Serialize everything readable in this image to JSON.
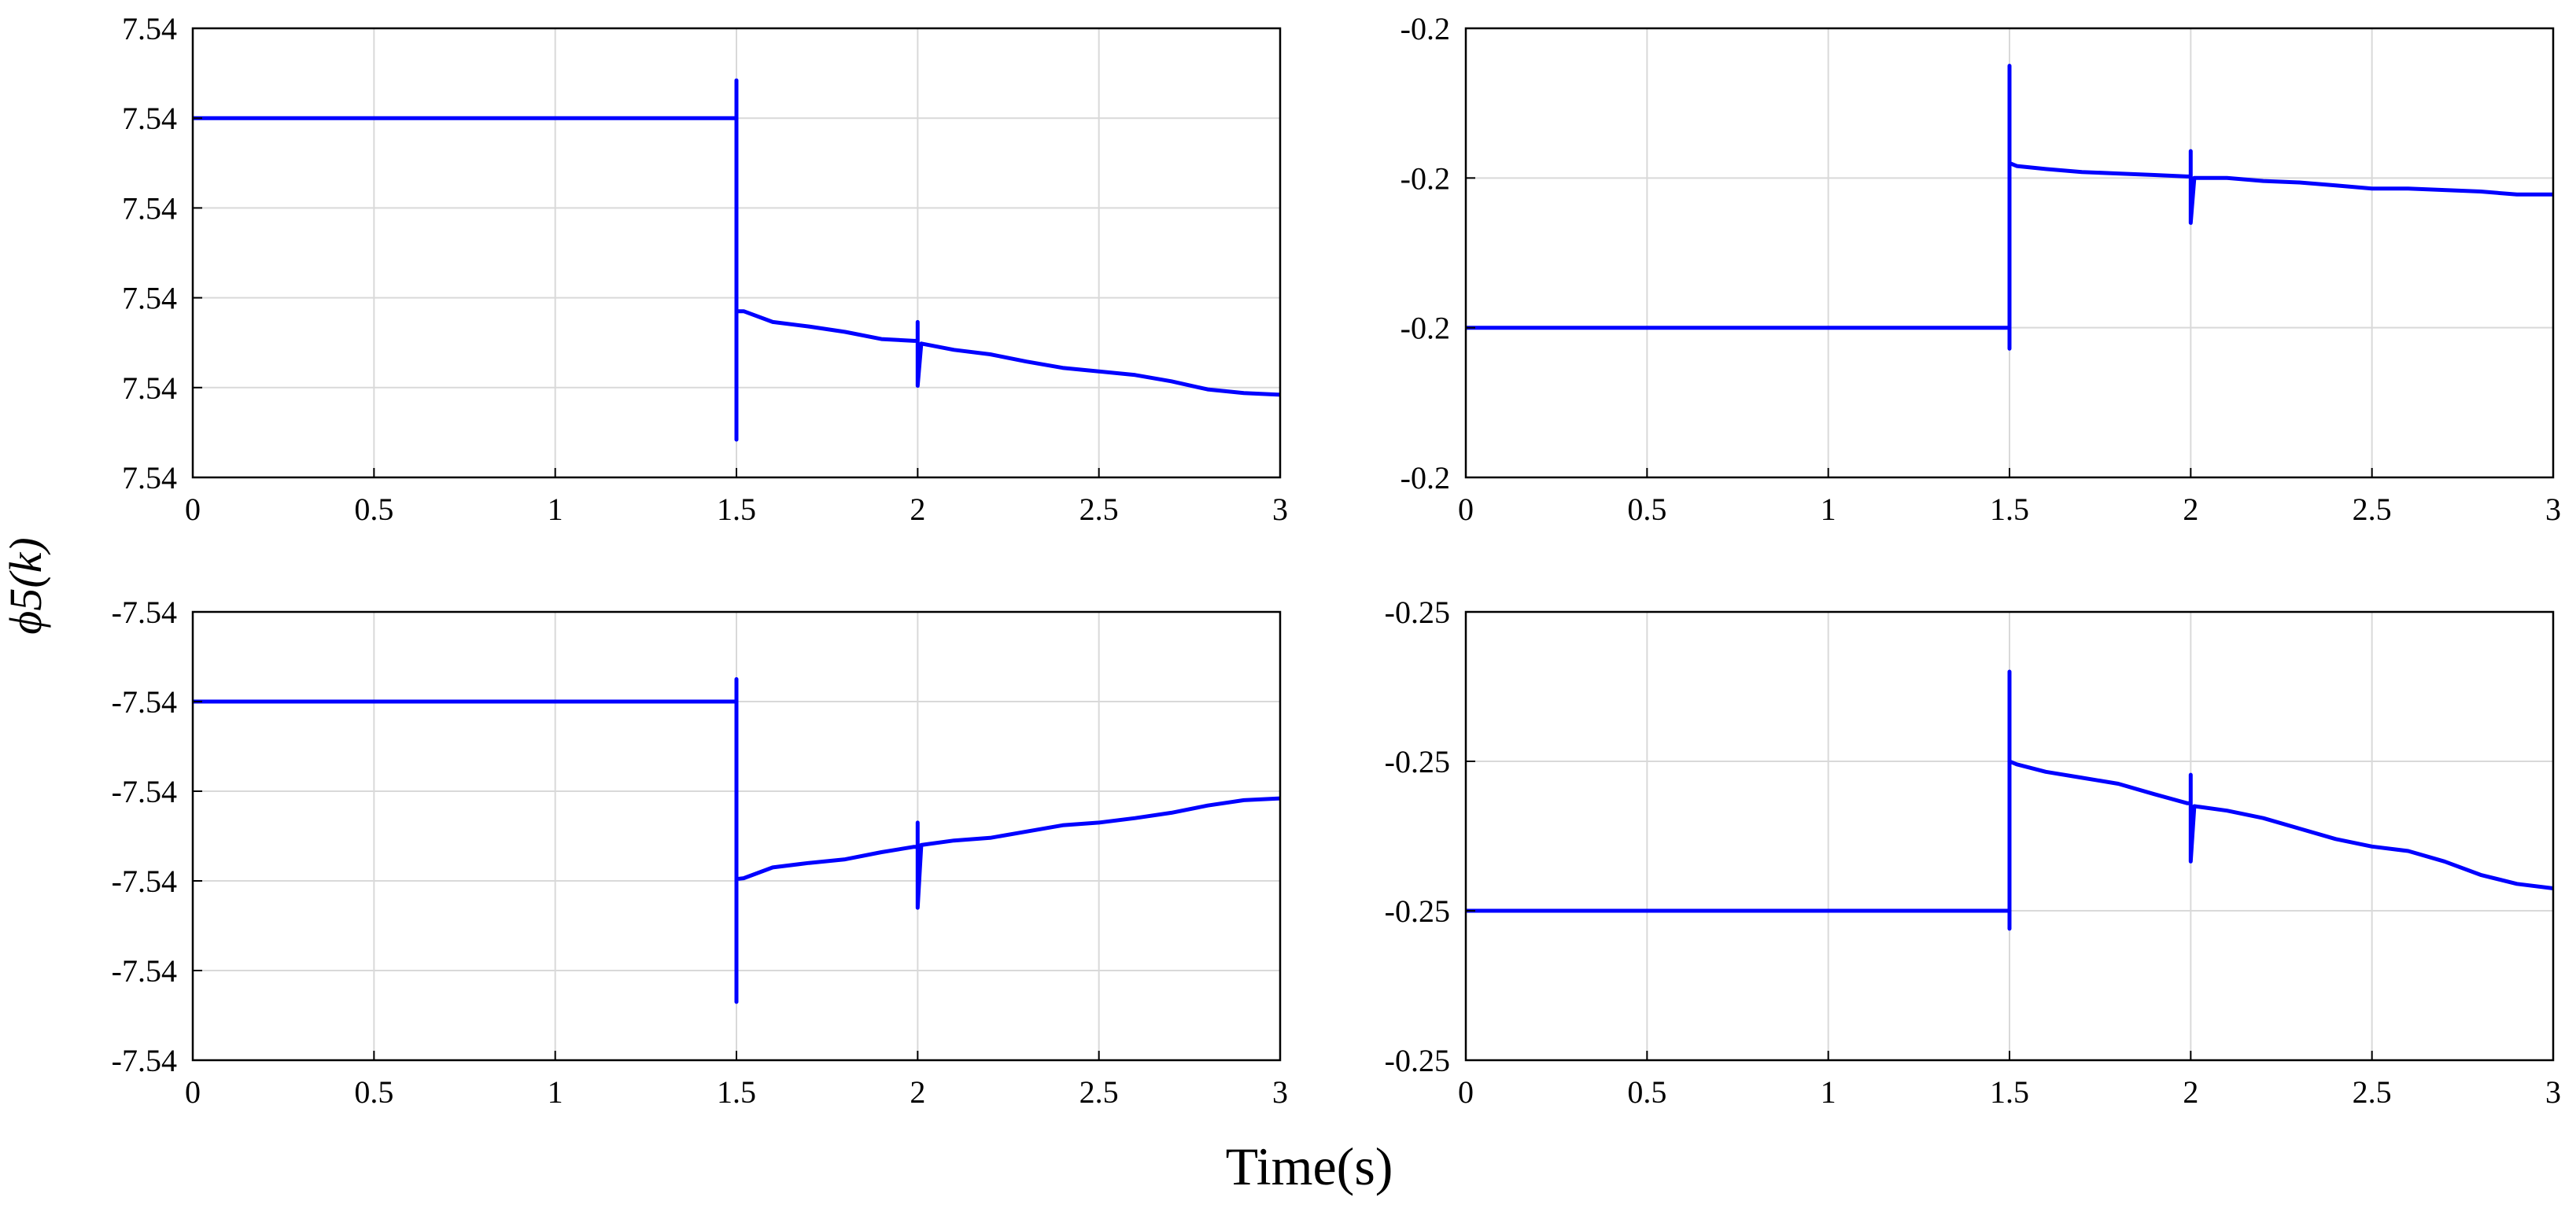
{
  "figure": {
    "shared_xlabel": "Time(s)",
    "shared_ylabel": "ϕ5(k)",
    "colors": {
      "line": "#0000ff",
      "grid": "#d9d9d9",
      "axes": "#000000",
      "background": "#ffffff"
    }
  },
  "chart_data": [
    {
      "type": "line",
      "xlim": [
        0,
        3
      ],
      "ylim": [
        0,
        5
      ],
      "x_ticks": [
        0,
        0.5,
        1,
        1.5,
        2,
        2.5,
        3
      ],
      "x_tick_labels": [
        "0",
        "0.5",
        "1",
        "1.5",
        "2",
        "2.5",
        "3"
      ],
      "y_ticks": [
        0,
        1,
        2,
        3,
        4,
        5
      ],
      "y_tick_labels": [
        "7.54",
        "7.54",
        "7.54",
        "7.54",
        "7.54",
        "7.54"
      ],
      "grid": true,
      "series": [
        {
          "x": [
            0,
            1.495,
            1.5,
            1.5,
            1.5,
            1.5,
            1.52,
            1.6,
            1.7,
            1.8,
            1.9,
            1.99,
            2.0,
            2.0,
            2.0,
            2.01,
            2.1,
            2.2,
            2.3,
            2.4,
            2.5,
            2.6,
            2.7,
            2.8,
            2.9,
            3.0
          ],
          "y": [
            4.0,
            4.0,
            4.0,
            4.42,
            0.42,
            1.85,
            1.85,
            1.73,
            1.68,
            1.62,
            1.54,
            1.52,
            1.52,
            1.73,
            1.02,
            1.49,
            1.42,
            1.37,
            1.29,
            1.22,
            1.18,
            1.14,
            1.07,
            0.98,
            0.94,
            0.92
          ]
        }
      ]
    },
    {
      "type": "line",
      "xlim": [
        0,
        3
      ],
      "ylim": [
        0,
        3
      ],
      "x_ticks": [
        0,
        0.5,
        1,
        1.5,
        2,
        2.5,
        3
      ],
      "x_tick_labels": [
        "0",
        "0.5",
        "1",
        "1.5",
        "2",
        "2.5",
        "3"
      ],
      "y_ticks": [
        0,
        1,
        2,
        3
      ],
      "y_tick_labels": [
        "-0.2",
        "-0.2",
        "-0.2",
        "-0.2"
      ],
      "grid": true,
      "series": [
        {
          "x": [
            0,
            1.495,
            1.5,
            1.5,
            1.5,
            1.5,
            1.52,
            1.6,
            1.7,
            1.8,
            1.9,
            1.99,
            2.0,
            2.0,
            2.0,
            2.01,
            2.1,
            2.2,
            2.3,
            2.4,
            2.5,
            2.6,
            2.7,
            2.8,
            2.9,
            3.0
          ],
          "y": [
            1.0,
            1.0,
            1.0,
            0.86,
            2.75,
            2.1,
            2.08,
            2.06,
            2.04,
            2.03,
            2.02,
            2.01,
            2.01,
            2.18,
            1.7,
            2.0,
            2.0,
            1.98,
            1.97,
            1.95,
            1.93,
            1.93,
            1.92,
            1.91,
            1.89,
            1.89
          ]
        }
      ]
    },
    {
      "type": "line",
      "xlim": [
        0,
        3
      ],
      "ylim": [
        0,
        5
      ],
      "x_ticks": [
        0,
        0.5,
        1,
        1.5,
        2,
        2.5,
        3
      ],
      "x_tick_labels": [
        "0",
        "0.5",
        "1",
        "1.5",
        "2",
        "2.5",
        "3"
      ],
      "y_ticks": [
        0,
        1,
        2,
        3,
        4,
        5
      ],
      "y_tick_labels": [
        "-7.54",
        "-7.54",
        "-7.54",
        "-7.54",
        "-7.54",
        "-7.54"
      ],
      "grid": true,
      "series": [
        {
          "x": [
            0,
            1.495,
            1.5,
            1.5,
            1.5,
            1.5,
            1.52,
            1.6,
            1.7,
            1.8,
            1.9,
            1.99,
            2.0,
            2.0,
            2.0,
            2.01,
            2.1,
            2.2,
            2.3,
            2.4,
            2.5,
            2.6,
            2.7,
            2.8,
            2.9,
            3.0
          ],
          "y": [
            4.0,
            4.0,
            4.0,
            4.25,
            0.65,
            2.02,
            2.03,
            2.15,
            2.2,
            2.24,
            2.32,
            2.38,
            2.38,
            2.65,
            1.7,
            2.4,
            2.45,
            2.48,
            2.55,
            2.62,
            2.65,
            2.7,
            2.76,
            2.84,
            2.9,
            2.92
          ]
        }
      ]
    },
    {
      "type": "line",
      "xlim": [
        0,
        3
      ],
      "ylim": [
        0,
        3
      ],
      "x_ticks": [
        0,
        0.5,
        1,
        1.5,
        2,
        2.5,
        3
      ],
      "x_tick_labels": [
        "0",
        "0.5",
        "1",
        "1.5",
        "2",
        "2.5",
        "3"
      ],
      "y_ticks": [
        0,
        1,
        2,
        3
      ],
      "y_tick_labels": [
        "-0.25",
        "-0.25",
        "-0.25",
        "-0.25"
      ],
      "grid": true,
      "series": [
        {
          "x": [
            0,
            1.495,
            1.5,
            1.5,
            1.5,
            1.5,
            1.52,
            1.6,
            1.7,
            1.8,
            1.9,
            1.99,
            2.0,
            2.0,
            2.0,
            2.01,
            2.1,
            2.2,
            2.3,
            2.4,
            2.5,
            2.6,
            2.7,
            2.8,
            2.9,
            3.0
          ],
          "y": [
            1.0,
            1.0,
            1.0,
            0.88,
            2.6,
            2.0,
            1.98,
            1.93,
            1.89,
            1.85,
            1.78,
            1.72,
            1.72,
            1.91,
            1.33,
            1.7,
            1.67,
            1.62,
            1.55,
            1.48,
            1.43,
            1.4,
            1.33,
            1.24,
            1.18,
            1.15
          ]
        }
      ]
    }
  ]
}
